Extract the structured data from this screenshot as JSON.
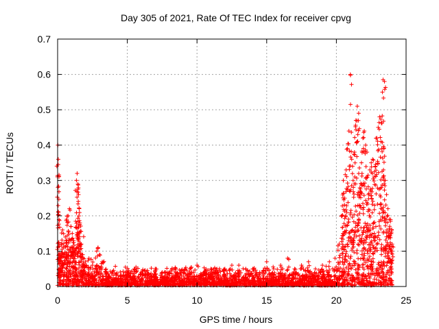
{
  "chart_data": {
    "type": "scatter",
    "title": "Day 305 of 2021, Rate Of TEC Index for receiver cpvg",
    "xlabel": "GPS time / hours",
    "ylabel": "ROTI / TECUs",
    "xlim": [
      0,
      25
    ],
    "ylim": [
      0,
      0.7
    ],
    "x_ticks": [
      0,
      5,
      10,
      15,
      20,
      25
    ],
    "x_tick_labels": [
      "0",
      "5",
      "10",
      "15",
      "20",
      "25"
    ],
    "y_ticks": [
      0,
      0.1,
      0.2,
      0.3,
      0.4,
      0.5,
      0.6,
      0.7
    ],
    "y_tick_labels": [
      "0",
      "0.1",
      "0.2",
      "0.3",
      "0.4",
      "0.5",
      "0.6",
      "0.7"
    ],
    "grid": true,
    "marker": "plus",
    "color": "#ff0000",
    "series": [
      {
        "points": [
          [
            0.02,
            0.4
          ],
          [
            0.04,
            0.345
          ],
          [
            0.06,
            0.21
          ],
          [
            0.1,
            0.09
          ],
          [
            0.15,
            0.05
          ],
          [
            0.25,
            0.12
          ],
          [
            0.35,
            0.16
          ],
          [
            0.45,
            0.09
          ],
          [
            0.55,
            0.14
          ],
          [
            0.65,
            0.19
          ],
          [
            0.75,
            0.2
          ],
          [
            0.85,
            0.22
          ],
          [
            0.95,
            0.17
          ],
          [
            1.05,
            0.15
          ],
          [
            1.15,
            0.13
          ],
          [
            1.25,
            0.1
          ],
          [
            1.35,
            0.3
          ],
          [
            1.4,
            0.32
          ],
          [
            1.45,
            0.29
          ],
          [
            1.5,
            0.26
          ],
          [
            1.55,
            0.22
          ],
          [
            1.6,
            0.18
          ],
          [
            1.7,
            0.12
          ],
          [
            1.8,
            0.09
          ],
          [
            2.0,
            0.07
          ],
          [
            2.2,
            0.05
          ],
          [
            2.5,
            0.06
          ],
          [
            2.8,
            0.1
          ],
          [
            2.9,
            0.11
          ],
          [
            3.0,
            0.09
          ],
          [
            3.2,
            0.07
          ],
          [
            3.5,
            0.04
          ],
          [
            4.0,
            0.02
          ],
          [
            4.5,
            0.03
          ],
          [
            5.0,
            0.04
          ],
          [
            5.5,
            0.05
          ],
          [
            6.0,
            0.04
          ],
          [
            6.5,
            0.03
          ],
          [
            7.0,
            0.05
          ],
          [
            7.5,
            0.04
          ],
          [
            8.0,
            0.04
          ],
          [
            8.5,
            0.05
          ],
          [
            9.0,
            0.04
          ],
          [
            9.5,
            0.05
          ],
          [
            10.0,
            0.06
          ],
          [
            10.5,
            0.04
          ],
          [
            11.0,
            0.05
          ],
          [
            11.5,
            0.04
          ],
          [
            12.0,
            0.05
          ],
          [
            12.5,
            0.06
          ],
          [
            13.0,
            0.06
          ],
          [
            13.5,
            0.05
          ],
          [
            14.0,
            0.05
          ],
          [
            14.5,
            0.04
          ],
          [
            15.0,
            0.07
          ],
          [
            15.5,
            0.05
          ],
          [
            16.0,
            0.06
          ],
          [
            16.5,
            0.08
          ],
          [
            17.0,
            0.05
          ],
          [
            17.5,
            0.06
          ],
          [
            18.0,
            0.07
          ],
          [
            18.5,
            0.05
          ],
          [
            19.0,
            0.06
          ],
          [
            19.5,
            0.07
          ],
          [
            19.9,
            0.08
          ],
          [
            20.2,
            0.12
          ],
          [
            20.4,
            0.2
          ],
          [
            20.5,
            0.3
          ],
          [
            20.6,
            0.25
          ],
          [
            20.7,
            0.33
          ],
          [
            20.8,
            0.39
          ],
          [
            20.9,
            0.44
          ],
          [
            21.0,
            0.6
          ],
          [
            21.1,
            0.36
          ],
          [
            21.2,
            0.3
          ],
          [
            21.3,
            0.38
          ],
          [
            21.4,
            0.47
          ],
          [
            21.5,
            0.51
          ],
          [
            21.6,
            0.49
          ],
          [
            21.7,
            0.27
          ],
          [
            21.8,
            0.35
          ],
          [
            21.9,
            0.42
          ],
          [
            22.0,
            0.44
          ],
          [
            22.1,
            0.4
          ],
          [
            22.2,
            0.38
          ],
          [
            22.3,
            0.26
          ],
          [
            22.4,
            0.33
          ],
          [
            22.5,
            0.35
          ],
          [
            22.6,
            0.36
          ],
          [
            22.7,
            0.31
          ],
          [
            22.8,
            0.34
          ],
          [
            22.9,
            0.42
          ],
          [
            23.0,
            0.45
          ],
          [
            23.1,
            0.48
          ],
          [
            23.2,
            0.41
          ],
          [
            23.3,
            0.55
          ],
          [
            23.35,
            0.585
          ],
          [
            23.45,
            0.58
          ],
          [
            23.5,
            0.3
          ],
          [
            23.6,
            0.26
          ],
          [
            23.7,
            0.22
          ],
          [
            23.8,
            0.19
          ],
          [
            23.9,
            0.15
          ],
          [
            24.0,
            0.12
          ]
        ],
        "x_range": [
          0,
          24
        ],
        "baseline_noise": 0.035
      }
    ]
  }
}
